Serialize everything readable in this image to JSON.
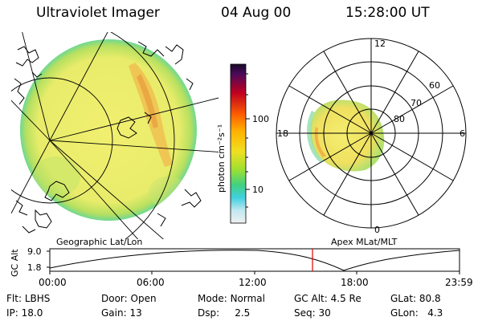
{
  "header": {
    "title": "Ultraviolet Imager",
    "date": "04 Aug 00",
    "time": "15:28:00 UT"
  },
  "colorbar": {
    "unit_label": "photon cm⁻²s⁻¹",
    "ticks": [
      "100",
      "10"
    ],
    "colors": [
      "#1a0a2a",
      "#4a0a5a",
      "#c00020",
      "#ff6000",
      "#ffb000",
      "#f0e020",
      "#a0e030",
      "#40d080",
      "#40d0e0",
      "#c0e8f0",
      "#f0f0f0"
    ]
  },
  "map_labels": {
    "left": "Geographic Lat/Lon",
    "right": "Apex MLat/MLT"
  },
  "polar": {
    "mlt_labels": [
      "12",
      "18",
      "6",
      "0"
    ],
    "lat_labels": [
      "60",
      "70",
      "80"
    ]
  },
  "altitude_plot": {
    "ylabel": "GC Alt",
    "yticks": [
      "9.0",
      "1.8"
    ],
    "xticks": [
      "00:00",
      "06:00",
      "12:00",
      "18:00",
      "23:59"
    ],
    "marker_time": "15:28",
    "marker_color": "#e00000"
  },
  "info": {
    "row1": [
      {
        "label": "Flt:",
        "value": "LBHS"
      },
      {
        "label": "Door:",
        "value": "Open"
      },
      {
        "label": "Mode:",
        "value": "Normal"
      },
      {
        "label": "GC Alt:",
        "value": "4.5 Re"
      },
      {
        "label": "GLat:",
        "value": "80.8"
      }
    ],
    "row2": [
      {
        "label": "IP:",
        "value": "18.0"
      },
      {
        "label": "Gain:",
        "value": "13"
      },
      {
        "label": "Dsp:",
        "value": "2.5"
      },
      {
        "label": "Seq:",
        "value": "30"
      },
      {
        "label": "GLon:",
        "value": "4.3"
      }
    ]
  }
}
